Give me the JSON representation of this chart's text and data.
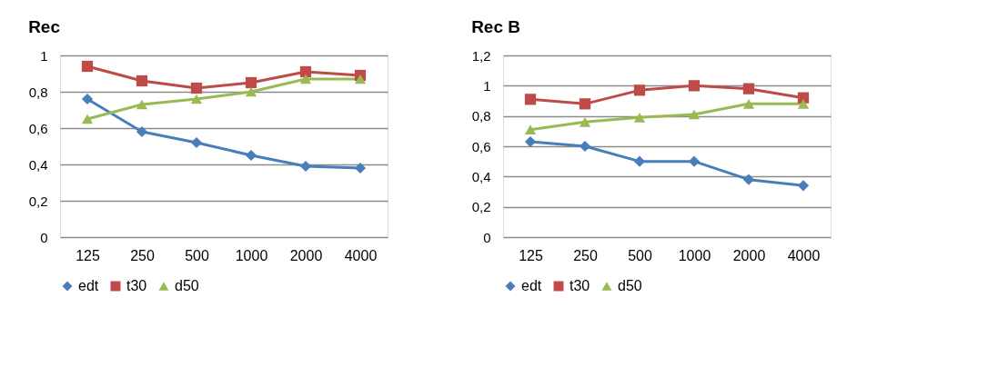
{
  "chart_data": [
    {
      "type": "line",
      "title": "Rec",
      "categories": [
        "125",
        "250",
        "500",
        "1000",
        "2000",
        "4000"
      ],
      "series": [
        {
          "name": "edt",
          "color": "#4a7ebb",
          "marker": "diamond",
          "values": [
            0.76,
            0.58,
            0.52,
            0.45,
            0.39,
            0.38
          ]
        },
        {
          "name": "t30",
          "color": "#be4b48",
          "marker": "square",
          "values": [
            0.94,
            0.86,
            0.82,
            0.85,
            0.91,
            0.89
          ]
        },
        {
          "name": "d50",
          "color": "#98b954",
          "marker": "triangle",
          "values": [
            0.65,
            0.73,
            0.76,
            0.8,
            0.87,
            0.87
          ]
        }
      ],
      "ylim": [
        0,
        1
      ],
      "yticks": [
        0,
        {
          "value": 0.2,
          "label": "0,2"
        },
        {
          "value": 0.4,
          "label": "0,4"
        },
        {
          "value": 0.6,
          "label": "0,6"
        },
        {
          "value": 0.8,
          "label": "0,8"
        },
        1
      ],
      "grid": "y",
      "legend": "bottom"
    },
    {
      "type": "line",
      "title": "Rec B",
      "categories": [
        "125",
        "250",
        "500",
        "1000",
        "2000",
        "4000"
      ],
      "series": [
        {
          "name": "edt",
          "color": "#4a7ebb",
          "marker": "diamond",
          "values": [
            0.63,
            0.6,
            0.5,
            0.5,
            0.38,
            0.34
          ]
        },
        {
          "name": "t30",
          "color": "#be4b48",
          "marker": "square",
          "values": [
            0.91,
            0.88,
            0.97,
            1.0,
            0.98,
            0.92
          ]
        },
        {
          "name": "d50",
          "color": "#98b954",
          "marker": "triangle",
          "values": [
            0.71,
            0.76,
            0.79,
            0.81,
            0.88,
            0.88
          ]
        }
      ],
      "ylim": [
        0,
        1.2
      ],
      "yticks": [
        0,
        {
          "value": 0.2,
          "label": "0,2"
        },
        {
          "value": 0.4,
          "label": "0,4"
        },
        {
          "value": 0.6,
          "label": "0,6"
        },
        {
          "value": 0.8,
          "label": "0,8"
        },
        1,
        {
          "value": 1.2,
          "label": "1,2"
        }
      ],
      "grid": "y",
      "legend": "bottom"
    }
  ]
}
